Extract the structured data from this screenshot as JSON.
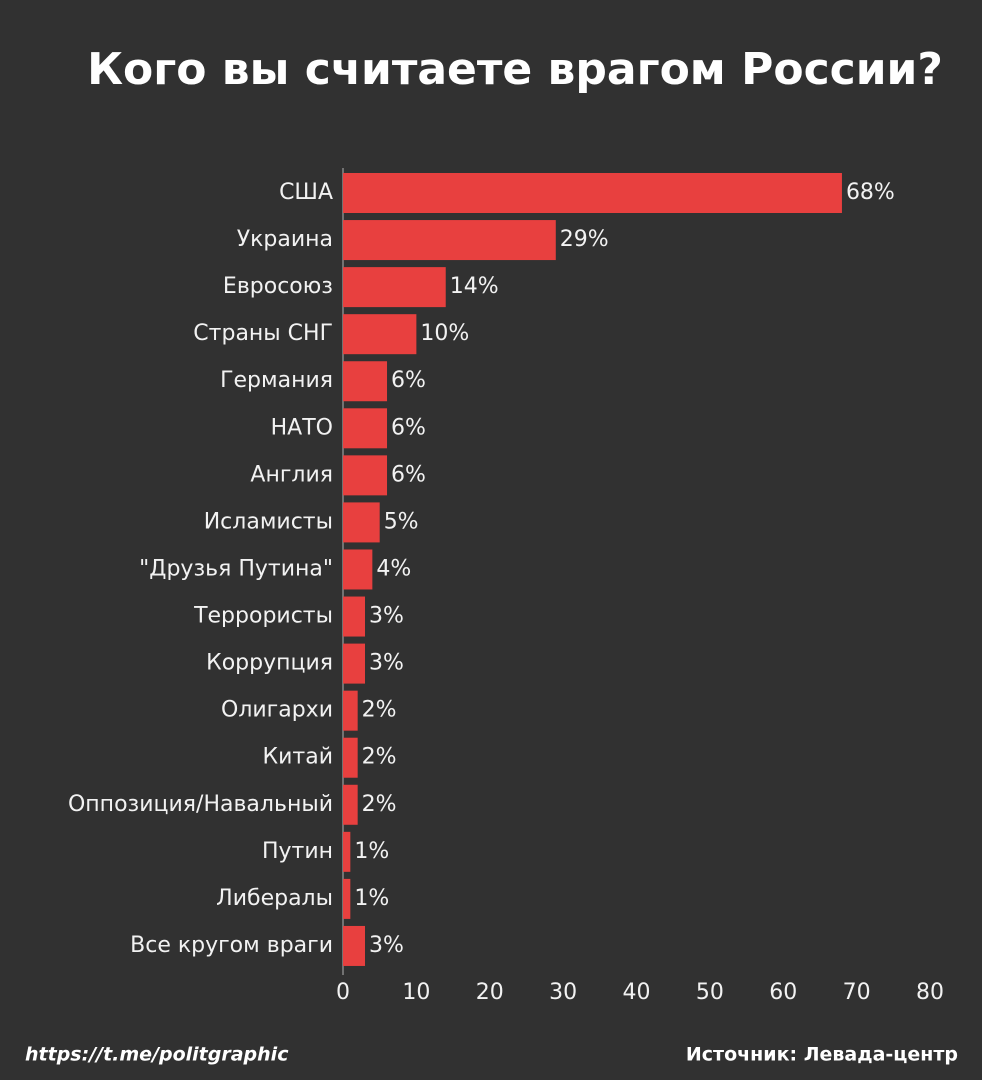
{
  "chart_data": {
    "type": "bar",
    "orientation": "horizontal",
    "title": "Кого вы считаете врагом России?",
    "categories": [
      "США",
      "Украина",
      "Евросоюз",
      "Страны СНГ",
      "Германия",
      "НАТО",
      "Англия",
      "Исламисты",
      "\"Друзья Путина\"",
      "Террористы",
      "Коррупция",
      "Олигархи",
      "Китай",
      "Оппозиция/Навальный",
      "Путин",
      "Либералы",
      "Все кругом враги"
    ],
    "values": [
      68,
      29,
      14,
      10,
      6,
      6,
      6,
      5,
      4,
      3,
      3,
      2,
      2,
      2,
      1,
      1,
      3
    ],
    "value_labels": [
      "68%",
      "29%",
      "14%",
      "10%",
      "6%",
      "6%",
      "6%",
      "5%",
      "4%",
      "3%",
      "3%",
      "2%",
      "2%",
      "2%",
      "1%",
      "1%",
      "3%"
    ],
    "color": "#e8403f",
    "xlim": [
      0,
      80
    ],
    "xticks": [
      0,
      10,
      20,
      30,
      40,
      50,
      60,
      70,
      80
    ],
    "url": "https://t.me/politgraphic",
    "source": "Источник: Левада-центр"
  }
}
